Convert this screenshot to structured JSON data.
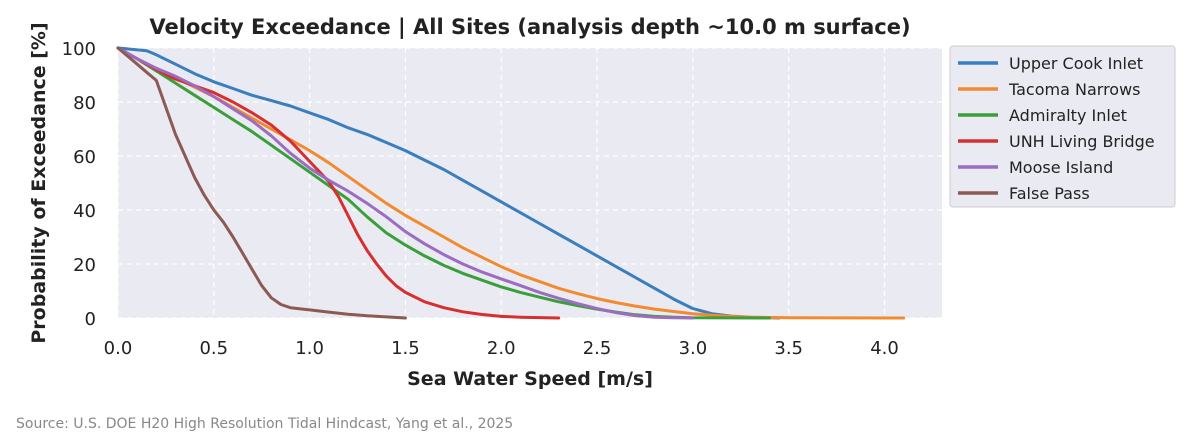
{
  "chart_data": {
    "type": "line",
    "title": "Velocity Exceedance | All Sites (analysis depth ~10.0 m surface)",
    "xlabel": "Sea Water Speed [m/s]",
    "ylabel": "Probability of Exceedance [%]",
    "xlim": [
      0,
      4.3
    ],
    "ylim": [
      0,
      100
    ],
    "x_ticks": [
      "0.0",
      "0.5",
      "1.0",
      "1.5",
      "2.0",
      "2.5",
      "3.0",
      "3.5",
      "4.0"
    ],
    "y_ticks": [
      "0",
      "20",
      "40",
      "60",
      "80",
      "100"
    ],
    "grid": true,
    "legend_position": "outside-right",
    "background": "#eaeaf2",
    "series": [
      {
        "name": "Upper Cook Inlet",
        "color": "#3a7ebd",
        "points": [
          [
            0,
            100
          ],
          [
            0.15,
            99
          ],
          [
            0.2,
            97.5
          ],
          [
            0.3,
            94
          ],
          [
            0.4,
            90.5
          ],
          [
            0.5,
            87.5
          ],
          [
            0.6,
            85
          ],
          [
            0.7,
            82.5
          ],
          [
            0.8,
            80.5
          ],
          [
            0.9,
            78.5
          ],
          [
            1.0,
            76
          ],
          [
            1.1,
            73.5
          ],
          [
            1.2,
            70.5
          ],
          [
            1.3,
            68
          ],
          [
            1.4,
            65
          ],
          [
            1.5,
            62
          ],
          [
            1.6,
            58.5
          ],
          [
            1.7,
            55
          ],
          [
            1.8,
            51
          ],
          [
            1.9,
            47
          ],
          [
            2.0,
            43
          ],
          [
            2.1,
            39
          ],
          [
            2.2,
            35
          ],
          [
            2.3,
            31
          ],
          [
            2.4,
            27
          ],
          [
            2.5,
            23
          ],
          [
            2.6,
            19
          ],
          [
            2.7,
            15
          ],
          [
            2.8,
            11
          ],
          [
            2.9,
            7
          ],
          [
            3.0,
            3.5
          ],
          [
            3.1,
            1.6
          ],
          [
            3.2,
            0.7
          ],
          [
            3.3,
            0.3
          ],
          [
            3.4,
            0.1
          ],
          [
            3.45,
            0
          ]
        ]
      },
      {
        "name": "Tacoma Narrows",
        "color": "#f28a30",
        "points": [
          [
            0,
            100
          ],
          [
            0.1,
            96
          ],
          [
            0.2,
            92.5
          ],
          [
            0.3,
            89
          ],
          [
            0.4,
            85.5
          ],
          [
            0.5,
            82
          ],
          [
            0.6,
            78
          ],
          [
            0.7,
            74
          ],
          [
            0.8,
            70
          ],
          [
            0.9,
            66
          ],
          [
            1.0,
            62
          ],
          [
            1.1,
            57.5
          ],
          [
            1.2,
            52.5
          ],
          [
            1.3,
            47.5
          ],
          [
            1.4,
            42.5
          ],
          [
            1.5,
            38
          ],
          [
            1.6,
            34
          ],
          [
            1.7,
            30
          ],
          [
            1.8,
            26
          ],
          [
            1.9,
            22.5
          ],
          [
            2.0,
            19
          ],
          [
            2.1,
            16
          ],
          [
            2.2,
            13.5
          ],
          [
            2.3,
            11
          ],
          [
            2.4,
            9
          ],
          [
            2.5,
            7.2
          ],
          [
            2.6,
            5.7
          ],
          [
            2.7,
            4.4
          ],
          [
            2.8,
            3.3
          ],
          [
            2.9,
            2.4
          ],
          [
            3.0,
            1.6
          ],
          [
            3.1,
            1.0
          ],
          [
            3.2,
            0.6
          ],
          [
            3.3,
            0.3
          ],
          [
            3.5,
            0.1
          ],
          [
            4.1,
            0
          ]
        ]
      },
      {
        "name": "Admiralty Inlet",
        "color": "#3a9f3a",
        "points": [
          [
            0,
            100
          ],
          [
            0.1,
            96
          ],
          [
            0.2,
            91.5
          ],
          [
            0.3,
            87
          ],
          [
            0.4,
            82.5
          ],
          [
            0.5,
            78
          ],
          [
            0.6,
            73.5
          ],
          [
            0.7,
            69
          ],
          [
            0.8,
            64
          ],
          [
            0.9,
            59
          ],
          [
            1.0,
            54
          ],
          [
            1.1,
            49
          ],
          [
            1.2,
            44
          ],
          [
            1.3,
            37.5
          ],
          [
            1.4,
            31.5
          ],
          [
            1.5,
            27
          ],
          [
            1.6,
            23
          ],
          [
            1.7,
            19.5
          ],
          [
            1.8,
            16.5
          ],
          [
            1.9,
            14
          ],
          [
            2.0,
            11.5
          ],
          [
            2.1,
            9.5
          ],
          [
            2.2,
            7.7
          ],
          [
            2.3,
            6
          ],
          [
            2.4,
            4.6
          ],
          [
            2.5,
            3.3
          ],
          [
            2.6,
            2.2
          ],
          [
            2.7,
            1.2
          ],
          [
            2.8,
            0.6
          ],
          [
            2.9,
            0.3
          ],
          [
            3.0,
            0.1
          ],
          [
            3.4,
            0
          ]
        ]
      },
      {
        "name": "UNH Living Bridge",
        "color": "#d62f2f",
        "points": [
          [
            0,
            100
          ],
          [
            0.1,
            96
          ],
          [
            0.2,
            92
          ],
          [
            0.3,
            88.5
          ],
          [
            0.4,
            86
          ],
          [
            0.5,
            83.5
          ],
          [
            0.6,
            80
          ],
          [
            0.7,
            76
          ],
          [
            0.8,
            71.5
          ],
          [
            0.9,
            65.5
          ],
          [
            1.0,
            58
          ],
          [
            1.1,
            50.5
          ],
          [
            1.15,
            45
          ],
          [
            1.2,
            38
          ],
          [
            1.25,
            31
          ],
          [
            1.3,
            25
          ],
          [
            1.35,
            20
          ],
          [
            1.4,
            15.5
          ],
          [
            1.45,
            12
          ],
          [
            1.5,
            9.5
          ],
          [
            1.6,
            6
          ],
          [
            1.7,
            3.8
          ],
          [
            1.8,
            2.3
          ],
          [
            1.9,
            1.3
          ],
          [
            2.0,
            0.6
          ],
          [
            2.1,
            0.3
          ],
          [
            2.3,
            0
          ]
        ]
      },
      {
        "name": "Moose Island",
        "color": "#9b6cc0",
        "points": [
          [
            0,
            100
          ],
          [
            0.1,
            96
          ],
          [
            0.2,
            92.5
          ],
          [
            0.3,
            89.5
          ],
          [
            0.4,
            86
          ],
          [
            0.5,
            82
          ],
          [
            0.6,
            77.5
          ],
          [
            0.7,
            73
          ],
          [
            0.8,
            67.5
          ],
          [
            0.9,
            61
          ],
          [
            1.0,
            55.5
          ],
          [
            1.1,
            51
          ],
          [
            1.2,
            47
          ],
          [
            1.3,
            42.5
          ],
          [
            1.4,
            37.5
          ],
          [
            1.5,
            32
          ],
          [
            1.6,
            27.5
          ],
          [
            1.7,
            23.5
          ],
          [
            1.8,
            20
          ],
          [
            1.9,
            17
          ],
          [
            2.0,
            14.5
          ],
          [
            2.1,
            12
          ],
          [
            2.2,
            9.5
          ],
          [
            2.3,
            7.3
          ],
          [
            2.4,
            5.3
          ],
          [
            2.5,
            3.5
          ],
          [
            2.6,
            2
          ],
          [
            2.7,
            0.9
          ],
          [
            2.8,
            0.3
          ],
          [
            2.9,
            0.1
          ],
          [
            3.0,
            0
          ]
        ]
      },
      {
        "name": "False Pass",
        "color": "#8c5a52",
        "points": [
          [
            0,
            100
          ],
          [
            0.05,
            97
          ],
          [
            0.1,
            94
          ],
          [
            0.15,
            91
          ],
          [
            0.2,
            88
          ],
          [
            0.25,
            78
          ],
          [
            0.3,
            68
          ],
          [
            0.35,
            60
          ],
          [
            0.4,
            52
          ],
          [
            0.45,
            45.5
          ],
          [
            0.5,
            40
          ],
          [
            0.55,
            35.5
          ],
          [
            0.6,
            30
          ],
          [
            0.65,
            24
          ],
          [
            0.7,
            18
          ],
          [
            0.75,
            12
          ],
          [
            0.8,
            7.5
          ],
          [
            0.85,
            5
          ],
          [
            0.9,
            3.8
          ],
          [
            1.0,
            3
          ],
          [
            1.1,
            2.2
          ],
          [
            1.2,
            1.4
          ],
          [
            1.3,
            0.8
          ],
          [
            1.4,
            0.4
          ],
          [
            1.5,
            0
          ]
        ]
      }
    ]
  },
  "source": "Source: U.S. DOE H20 High Resolution Tidal Hindcast, Yang et al., 2025"
}
